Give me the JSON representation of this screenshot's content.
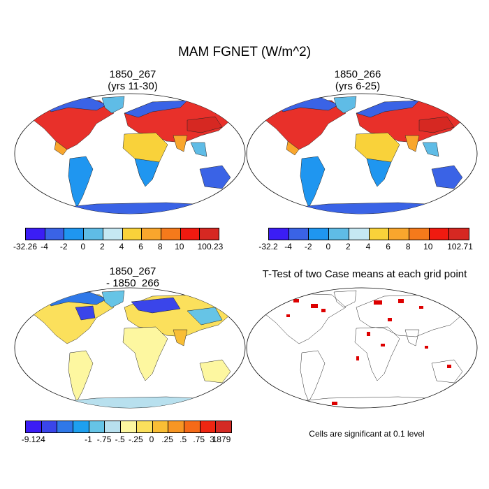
{
  "title": "MAM FGNET (W/m^2)",
  "panels": [
    {
      "title1": "1850_267",
      "title2": "(yrs 11-30)"
    },
    {
      "title1": "1850_266",
      "title2": "(yrs 6-25)"
    },
    {
      "title1": "1850_267",
      "title2": "- 1850_266"
    },
    {
      "title1": "T-Test of two Case means at each grid point",
      "title2": ""
    }
  ],
  "colorbar_top": {
    "colors": [
      "#3b1df5",
      "#3a63e6",
      "#1f96f0",
      "#5fbce6",
      "#c5e8f3",
      "#f9d23a",
      "#f9a62d",
      "#f57a1b",
      "#f01a10",
      "#d62822"
    ]
  },
  "colorbar_top_left_labels": [
    "-32.26",
    "-4",
    "-2",
    "0",
    "2",
    "4",
    "6",
    "8",
    "10",
    "100.23"
  ],
  "colorbar_top_right_labels": [
    "-32.2",
    "-4",
    "-2",
    "0",
    "2",
    "4",
    "6",
    "8",
    "10",
    "102.71"
  ],
  "colorbar_diff": {
    "colors": [
      "#3b1df5",
      "#3a45ea",
      "#2f78e8",
      "#1ea0ef",
      "#66c4e6",
      "#b8e0ee",
      "#fdf7a0",
      "#fbe05c",
      "#f9be35",
      "#f79624",
      "#f56a18",
      "#ef2612",
      "#d42a24"
    ],
    "labels": [
      "-9.124",
      "-1",
      "-.75",
      "-.5",
      "-.25",
      "0",
      ".25",
      ".5",
      ".75",
      "1",
      "3.879"
    ]
  },
  "ttest_note": "Cells are significant at 0.1 level"
}
